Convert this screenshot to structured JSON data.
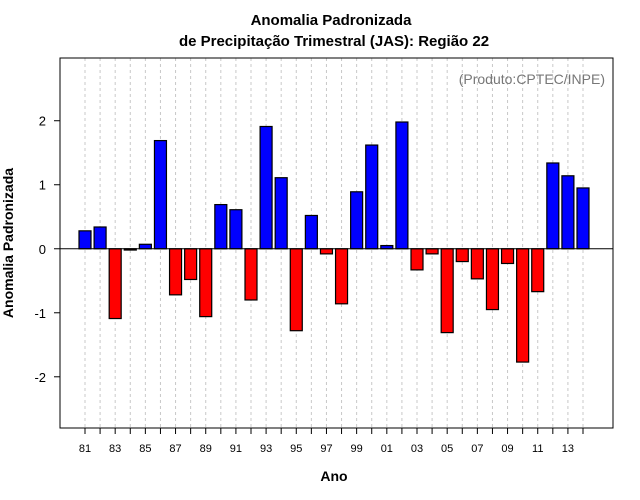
{
  "chart_data": {
    "type": "bar",
    "title": [
      "Anomalia Padronizada",
      "de Precipitação Trimestral (JAS): Região 22"
    ],
    "annotation": "(Produto:CPTEC/INPE)",
    "xlabel": "Ano",
    "ylabel": "Anomalia Padronizada",
    "ylim": [
      -2.8,
      2.98
    ],
    "yticks": [
      -2,
      -1,
      0,
      1,
      2
    ],
    "grid": "vertical dashed per year",
    "categories": [
      1981,
      1982,
      1983,
      1984,
      1985,
      1986,
      1987,
      1988,
      1989,
      1990,
      1991,
      1992,
      1993,
      1994,
      1995,
      1996,
      1997,
      1998,
      1999,
      2000,
      2001,
      2002,
      2003,
      2004,
      2005,
      2006,
      2007,
      2008,
      2009,
      2010,
      2011,
      2012,
      2013,
      2014
    ],
    "xtick_labels": [
      "81",
      "83",
      "85",
      "87",
      "89",
      "91",
      "93",
      "95",
      "97",
      "99",
      "01",
      "03",
      "05",
      "07",
      "09",
      "11",
      "13"
    ],
    "values": [
      0.28,
      0.34,
      -1.09,
      -0.02,
      0.07,
      1.69,
      -0.72,
      -0.48,
      -1.06,
      0.69,
      0.61,
      -0.8,
      1.91,
      1.11,
      -1.28,
      0.52,
      -0.08,
      -0.86,
      0.89,
      1.62,
      0.05,
      1.98,
      -0.33,
      -0.08,
      -1.31,
      -0.2,
      -0.47,
      -0.95,
      -0.23,
      -1.77,
      -0.67,
      1.34,
      1.14,
      0.95
    ],
    "colors": {
      "positive": "#0000ff",
      "negative": "#ff0000"
    }
  }
}
